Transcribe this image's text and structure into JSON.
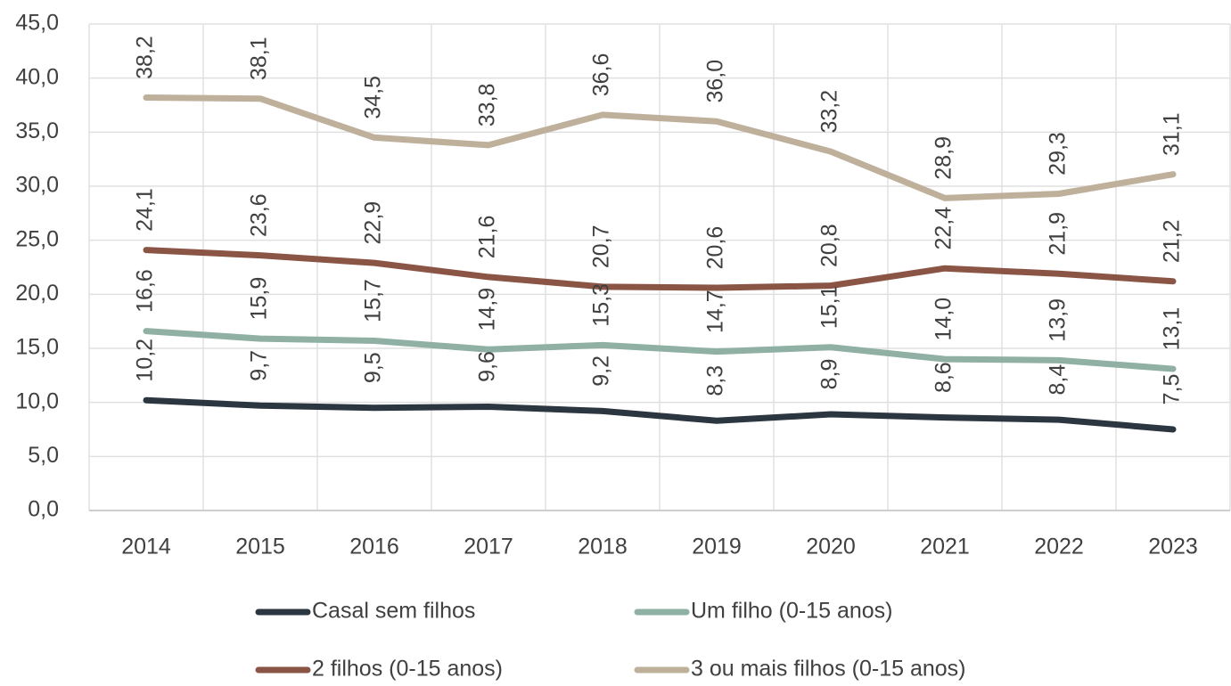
{
  "chart_data": {
    "type": "line",
    "categories": [
      "2014",
      "2015",
      "2016",
      "2017",
      "2018",
      "2019",
      "2020",
      "2021",
      "2022",
      "2023"
    ],
    "series": [
      {
        "name": "Casal sem filhos",
        "color": "#2b3640",
        "values": [
          10.2,
          9.7,
          9.5,
          9.6,
          9.2,
          8.3,
          8.9,
          8.6,
          8.4,
          7.5
        ],
        "value_labels": [
          "10,2",
          "9,7",
          "9,5",
          "9,6",
          "9,2",
          "8,3",
          "8,9",
          "8,6",
          "8,4",
          "7,5"
        ]
      },
      {
        "name": "Um filho (0-15 anos)",
        "color": "#8fb0a3",
        "values": [
          16.6,
          15.9,
          15.7,
          14.9,
          15.3,
          14.7,
          15.1,
          14.0,
          13.9,
          13.1
        ],
        "value_labels": [
          "16,6",
          "15,9",
          "15,7",
          "14,9",
          "15,3",
          "14,7",
          "15,1",
          "14,0",
          "13,9",
          "13,1"
        ]
      },
      {
        "name": "2 filhos (0-15 anos)",
        "color": "#8b5546",
        "values": [
          24.1,
          23.6,
          22.9,
          21.6,
          20.7,
          20.6,
          20.8,
          22.4,
          21.9,
          21.2
        ],
        "value_labels": [
          "24,1",
          "23,6",
          "22,9",
          "21,6",
          "20,7",
          "20,6",
          "20,8",
          "22,4",
          "21,9",
          "21,2"
        ]
      },
      {
        "name": "3 ou mais filhos (0-15 anos)",
        "color": "#bfb09c",
        "values": [
          38.2,
          38.1,
          34.5,
          33.8,
          36.6,
          36.0,
          33.2,
          28.9,
          29.3,
          31.1
        ],
        "value_labels": [
          "38,2",
          "38,1",
          "34,5",
          "33,8",
          "36,6",
          "36,0",
          "33,2",
          "28,9",
          "29,3",
          "31,1"
        ]
      }
    ],
    "ylim": [
      0,
      45
    ],
    "yticks": [
      {
        "value": 0,
        "label": "0,0"
      },
      {
        "value": 5,
        "label": "5,0"
      },
      {
        "value": 10,
        "label": "10,0"
      },
      {
        "value": 15,
        "label": "15,0"
      },
      {
        "value": 20,
        "label": "20,0"
      },
      {
        "value": 25,
        "label": "25,0"
      },
      {
        "value": 30,
        "label": "30,0"
      },
      {
        "value": 35,
        "label": "35,0"
      },
      {
        "value": 40,
        "label": "40,0"
      },
      {
        "value": 45,
        "label": "45,0"
      }
    ],
    "grid": true
  }
}
